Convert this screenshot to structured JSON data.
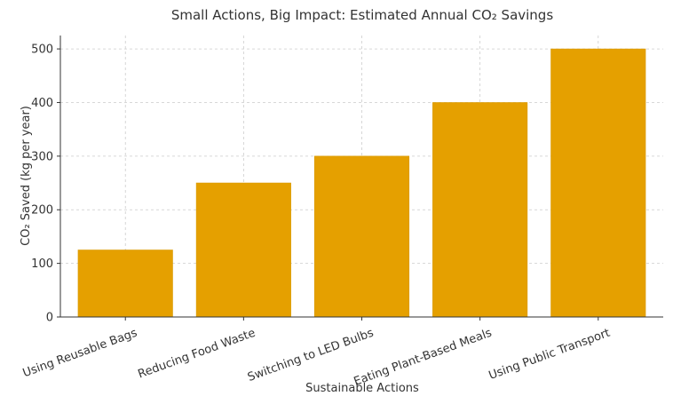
{
  "chart_data": {
    "type": "bar",
    "title": "Small Actions, Big Impact: Estimated Annual CO₂ Savings",
    "xlabel": "Sustainable Actions",
    "ylabel": "CO₂ Saved (kg per year)",
    "categories": [
      "Using Reusable Bags",
      "Reducing Food Waste",
      "Switching to LED Bulbs",
      "Eating Plant-Based Meals",
      "Using Public Transport"
    ],
    "values": [
      125,
      250,
      300,
      400,
      500
    ],
    "ylim": [
      0,
      525
    ],
    "yticks": [
      0,
      100,
      200,
      300,
      400,
      500
    ],
    "grid": true,
    "bar_color": "#E5A000",
    "bar_edge_color": "#D99A00"
  }
}
